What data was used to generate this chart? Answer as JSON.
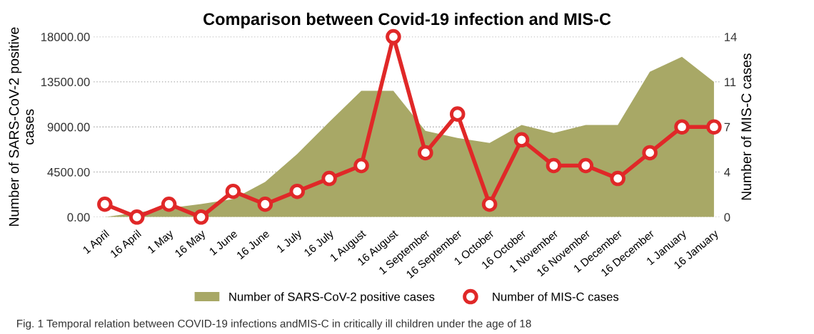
{
  "chart_data": {
    "type": "area",
    "title": "Comparison between Covid-19 infection and MIS-C",
    "ylabel": "Number of SARS-CoV-2 positive\ncases",
    "y2label": "Number of MIS-C cases",
    "categories": [
      "1 April",
      "16 April",
      "1 May",
      "16 May",
      "1 June",
      "16 June",
      "1 July",
      "16 July",
      "1 August",
      "16 August",
      "1 September",
      "16 September",
      "1 October",
      "16 October",
      "1 November",
      "16 November",
      "1 December",
      "16 December",
      "1 January",
      "16 January"
    ],
    "series": [
      {
        "name": "Number of SARS-CoV-2 positive cases",
        "color": "#a8a866",
        "values": [
          0,
          null,
          900,
          1300,
          1800,
          3500,
          6300,
          9500,
          12600,
          12600,
          8600,
          7900,
          7400,
          9200,
          8400,
          9200,
          9200,
          14500,
          16000,
          13500
        ]
      },
      {
        "name": "Number of MIS-C cases",
        "type": "line",
        "axis": "y2",
        "color": "#e02828",
        "marker": "circle",
        "values": [
          1,
          0,
          1,
          0,
          2,
          1,
          2,
          3,
          4,
          14,
          5,
          8,
          1,
          6,
          4,
          4,
          3,
          5,
          7,
          7
        ]
      }
    ],
    "ylim": [
      0,
      18000
    ],
    "yticks": [
      {
        "value": 0,
        "label": "0.00"
      },
      {
        "value": 4500,
        "label": "4500.00"
      },
      {
        "value": 9000,
        "label": "9000.00"
      },
      {
        "value": 13500,
        "label": "13500.00"
      },
      {
        "value": 18000,
        "label": "18000.00"
      }
    ],
    "y2lim": [
      0,
      14
    ],
    "y2ticks": [
      0,
      {
        "value": 3.5,
        "label": "4"
      },
      7,
      {
        "value": 10.5,
        "label": "11"
      },
      14
    ],
    "grid": "y",
    "legend": "bottom",
    "annotations": [
      "Fig. 1 Temporal relation between COVID-19 infections andMIS-C in critically ill children under the age of 18"
    ]
  }
}
